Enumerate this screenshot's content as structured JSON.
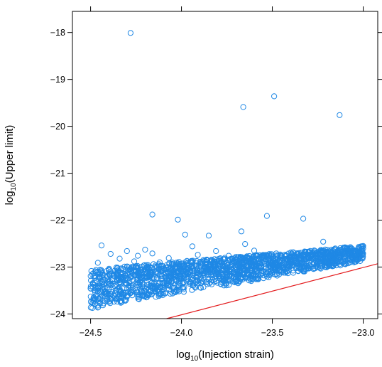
{
  "chart_data": {
    "type": "scatter",
    "title": "",
    "xlabel": "log",
    "xlabel_sub": "10",
    "xlabel_rest": "(Injection strain)",
    "ylabel": "log",
    "ylabel_sub": "10",
    "ylabel_rest": "(Upper limit)",
    "xlim": [
      -24.6,
      -22.92
    ],
    "ylim": [
      -24.1,
      -17.55
    ],
    "x_ticks": [
      -24.5,
      -24.0,
      -23.5,
      -23.0
    ],
    "x_tick_labels": [
      "−24.5",
      "−24.0",
      "−23.5",
      "−23.0"
    ],
    "y_ticks": [
      -18,
      -19,
      -20,
      -21,
      -22,
      -23,
      -24
    ],
    "y_tick_labels": [
      "−18",
      "−19",
      "−20",
      "−21",
      "−22",
      "−23",
      "−24"
    ],
    "marker": "open-circle",
    "point_color": "#1f88e5",
    "line_color": "#e31a1c",
    "grid": false,
    "reference_line": {
      "x": [
        -24.3,
        -22.92
      ],
      "y": [
        -24.32,
        -22.93
      ]
    },
    "dense_band": {
      "x_range": [
        -24.5,
        -23.0
      ],
      "lower_start": -23.9,
      "lower_end": -22.88,
      "upper_start": -23.05,
      "upper_end": -22.55
    },
    "points": [
      {
        "x": -24.28,
        "y": -18.01
      },
      {
        "x": -23.49,
        "y": -19.36
      },
      {
        "x": -23.66,
        "y": -19.59
      },
      {
        "x": -23.13,
        "y": -19.76
      },
      {
        "x": -24.16,
        "y": -21.88
      },
      {
        "x": -24.02,
        "y": -21.99
      },
      {
        "x": -23.53,
        "y": -21.91
      },
      {
        "x": -23.33,
        "y": -21.97
      },
      {
        "x": -23.67,
        "y": -22.24
      },
      {
        "x": -23.98,
        "y": -22.31
      },
      {
        "x": -23.85,
        "y": -22.33
      },
      {
        "x": -24.44,
        "y": -22.54
      },
      {
        "x": -23.94,
        "y": -22.56
      },
      {
        "x": -23.65,
        "y": -22.51
      },
      {
        "x": -23.22,
        "y": -22.46
      },
      {
        "x": -24.2,
        "y": -22.63
      },
      {
        "x": -24.3,
        "y": -22.66
      },
      {
        "x": -24.39,
        "y": -22.72
      },
      {
        "x": -24.34,
        "y": -22.82
      },
      {
        "x": -24.24,
        "y": -22.76
      },
      {
        "x": -24.16,
        "y": -22.71
      },
      {
        "x": -24.07,
        "y": -22.81
      },
      {
        "x": -23.91,
        "y": -22.74
      },
      {
        "x": -23.81,
        "y": -22.66
      },
      {
        "x": -23.74,
        "y": -22.76
      },
      {
        "x": -23.6,
        "y": -22.65
      },
      {
        "x": -23.56,
        "y": -22.78
      },
      {
        "x": -23.41,
        "y": -22.71
      },
      {
        "x": -23.3,
        "y": -22.69
      },
      {
        "x": -23.1,
        "y": -22.58
      },
      {
        "x": -24.46,
        "y": -22.91
      },
      {
        "x": -24.26,
        "y": -22.88
      },
      {
        "x": -24.12,
        "y": -22.9
      },
      {
        "x": -23.97,
        "y": -22.87
      },
      {
        "x": -23.86,
        "y": -22.85
      },
      {
        "x": -23.7,
        "y": -22.83
      },
      {
        "x": -23.52,
        "y": -22.86
      },
      {
        "x": -23.44,
        "y": -22.82
      }
    ]
  }
}
